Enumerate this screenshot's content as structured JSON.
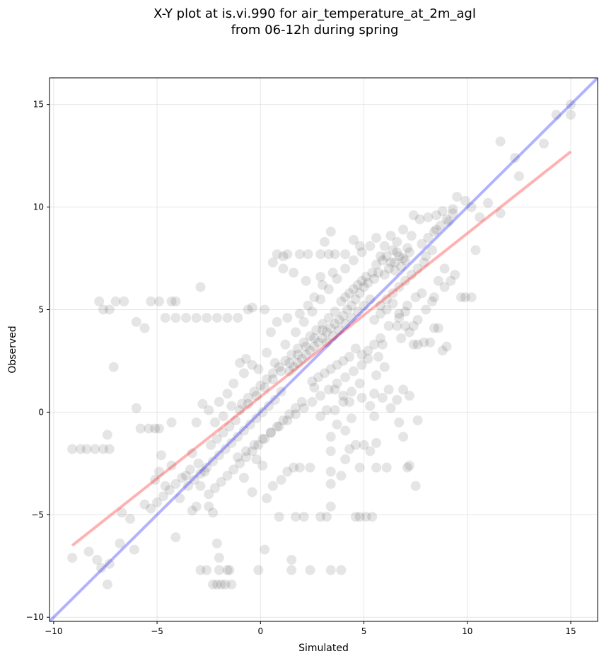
{
  "chart_data": {
    "type": "scatter",
    "title_line1": "X-Y plot at is.vi.990 for air_temperature_at_2m_agl",
    "title_line2": "from 06-12h during spring",
    "xlabel": "Simulated",
    "ylabel": "Observed",
    "xlim": [
      -10.2,
      16.3
    ],
    "ylim": [
      -10.2,
      16.3
    ],
    "xticks": [
      -10,
      -5,
      0,
      5,
      10,
      15
    ],
    "yticks": [
      -10,
      -5,
      0,
      5,
      10,
      15
    ],
    "xtick_labels": [
      "−10",
      "−5",
      "0",
      "5",
      "10",
      "15"
    ],
    "ytick_labels": [
      "−10",
      "−5",
      "0",
      "5",
      "10",
      "15"
    ],
    "grid": true,
    "point_color": "#000000",
    "point_alpha": 0.1,
    "lines": [
      {
        "role": "one-to-one",
        "color": "#0000ff",
        "alpha": 0.3,
        "x": [
          -10.2,
          16.3
        ],
        "y": [
          -10.2,
          16.3
        ]
      },
      {
        "role": "regression-fit",
        "color": "#ff0000",
        "alpha": 0.3,
        "x": [
          -9.1,
          15.0
        ],
        "y": [
          -6.5,
          12.7
        ]
      }
    ],
    "points": [
      [
        -9.1,
        -1.8
      ],
      [
        -8.7,
        -1.8
      ],
      [
        -8.4,
        -1.8
      ],
      [
        -8.0,
        -1.8
      ],
      [
        -7.6,
        -1.8
      ],
      [
        -7.3,
        -1.8
      ],
      [
        -7.4,
        -1.1
      ],
      [
        -9.1,
        -7.1
      ],
      [
        -8.3,
        -6.8
      ],
      [
        -7.9,
        -7.2
      ],
      [
        -7.7,
        -7.6
      ],
      [
        -7.4,
        -8.4
      ],
      [
        -7.3,
        -7.4
      ],
      [
        -6.8,
        -6.4
      ],
      [
        -6.1,
        -6.7
      ],
      [
        -7.8,
        5.4
      ],
      [
        -7.6,
        5.0
      ],
      [
        -7.3,
        5.0
      ],
      [
        -7.0,
        5.4
      ],
      [
        -6.6,
        5.4
      ],
      [
        -7.1,
        2.2
      ],
      [
        -6.0,
        4.4
      ],
      [
        -5.6,
        4.1
      ],
      [
        -5.3,
        5.4
      ],
      [
        -4.9,
        5.4
      ],
      [
        -4.6,
        4.6
      ],
      [
        -4.1,
        4.6
      ],
      [
        -3.6,
        4.6
      ],
      [
        -3.1,
        4.6
      ],
      [
        -2.6,
        4.6
      ],
      [
        -2.1,
        4.6
      ],
      [
        -4.3,
        5.4
      ],
      [
        -4.1,
        5.4
      ],
      [
        -2.9,
        6.1
      ],
      [
        -1.6,
        4.6
      ],
      [
        -1.1,
        4.6
      ],
      [
        -0.6,
        5.0
      ],
      [
        -0.4,
        5.1
      ],
      [
        0.2,
        5.0
      ],
      [
        -6.0,
        0.2
      ],
      [
        -5.8,
        -0.8
      ],
      [
        -5.4,
        -0.8
      ],
      [
        -5.1,
        -0.8
      ],
      [
        -4.9,
        -0.8
      ],
      [
        -4.3,
        -0.5
      ],
      [
        -3.1,
        -0.5
      ],
      [
        -2.8,
        0.4
      ],
      [
        -6.7,
        -4.9
      ],
      [
        -6.3,
        -5.2
      ],
      [
        -5.6,
        -4.5
      ],
      [
        -5.1,
        -3.3
      ],
      [
        -4.9,
        -2.9
      ],
      [
        -4.8,
        -2.1
      ],
      [
        -4.6,
        -3.6
      ],
      [
        -4.3,
        -2.6
      ],
      [
        -4.1,
        -6.1
      ],
      [
        -3.9,
        -4.2
      ],
      [
        -3.6,
        -3.1
      ],
      [
        -3.4,
        -2.8
      ],
      [
        -3.3,
        -4.8
      ],
      [
        -3.1,
        -4.6
      ],
      [
        -2.9,
        -3.6
      ],
      [
        -2.7,
        -2.9
      ],
      [
        -2.5,
        -4.6
      ],
      [
        -2.3,
        -4.9
      ],
      [
        -2.1,
        -6.4
      ],
      [
        -2.0,
        -7.1
      ],
      [
        -2.0,
        -7.7
      ],
      [
        -1.9,
        -8.4
      ],
      [
        -2.1,
        -8.4
      ],
      [
        -2.3,
        -8.4
      ],
      [
        -1.7,
        -8.4
      ],
      [
        -1.5,
        -7.7
      ],
      [
        -1.4,
        -8.4
      ],
      [
        -2.9,
        -7.7
      ],
      [
        -2.6,
        -7.7
      ],
      [
        -1.6,
        -7.7
      ],
      [
        -0.1,
        -7.7
      ],
      [
        0.2,
        -6.7
      ],
      [
        1.5,
        -7.2
      ],
      [
        1.5,
        -7.7
      ],
      [
        2.4,
        -7.7
      ],
      [
        3.4,
        -7.7
      ],
      [
        3.9,
        -7.7
      ],
      [
        0.9,
        -5.1
      ],
      [
        1.7,
        -5.1
      ],
      [
        2.1,
        -5.1
      ],
      [
        2.9,
        -5.1
      ],
      [
        3.2,
        -5.1
      ],
      [
        3.4,
        -4.6
      ],
      [
        4.6,
        -5.1
      ],
      [
        4.8,
        -5.1
      ],
      [
        5.1,
        -5.1
      ],
      [
        5.4,
        -5.1
      ],
      [
        3.4,
        -3.5
      ],
      [
        3.4,
        -2.9
      ],
      [
        3.9,
        -3.1
      ],
      [
        4.1,
        -2.3
      ],
      [
        4.3,
        -1.8
      ],
      [
        4.6,
        -1.6
      ],
      [
        5.0,
        -1.6
      ],
      [
        5.3,
        -1.9
      ],
      [
        5.6,
        -1.5
      ],
      [
        6.1,
        -2.7
      ],
      [
        5.6,
        -2.7
      ],
      [
        4.8,
        -2.7
      ],
      [
        3.4,
        -1.9
      ],
      [
        2.4,
        -2.7
      ],
      [
        1.6,
        -2.7
      ],
      [
        1.9,
        -2.7
      ],
      [
        7.1,
        -2.7
      ],
      [
        7.5,
        -3.6
      ],
      [
        7.2,
        -2.6
      ],
      [
        6.9,
        -1.2
      ],
      [
        6.6,
        0.6
      ],
      [
        6.2,
        1.1
      ],
      [
        6.9,
        1.1
      ],
      [
        7.2,
        0.8
      ],
      [
        7.6,
        -0.4
      ],
      [
        4.9,
        0.7
      ],
      [
        5.3,
        0.3
      ],
      [
        5.5,
        -0.2
      ],
      [
        4.3,
        0.5
      ],
      [
        4.0,
        0.5
      ],
      [
        3.6,
        0.1
      ],
      [
        3.2,
        0.1
      ],
      [
        2.9,
        -0.2
      ],
      [
        9.5,
        10.5
      ],
      [
        9.9,
        10.3
      ],
      [
        10.2,
        10.0
      ],
      [
        10.6,
        9.5
      ],
      [
        11.0,
        10.2
      ],
      [
        11.6,
        9.7
      ],
      [
        11.6,
        13.2
      ],
      [
        12.3,
        12.4
      ],
      [
        12.5,
        11.5
      ],
      [
        13.7,
        13.1
      ],
      [
        14.3,
        14.5
      ],
      [
        15.0,
        14.5
      ],
      [
        15.0,
        15.0
      ],
      [
        9.9,
        5.6
      ],
      [
        10.2,
        5.6
      ],
      [
        10.4,
        7.9
      ],
      [
        9.4,
        6.7
      ],
      [
        9.2,
        6.4
      ],
      [
        8.9,
        6.1
      ],
      [
        8.6,
        6.4
      ],
      [
        8.4,
        5.6
      ],
      [
        9.0,
        3.2
      ],
      [
        8.8,
        3.0
      ],
      [
        8.6,
        4.1
      ],
      [
        8.2,
        3.4
      ],
      [
        7.6,
        3.3
      ],
      [
        7.9,
        3.4
      ],
      [
        7.4,
        3.3
      ],
      [
        8.4,
        4.1
      ],
      [
        7.8,
        5.8
      ],
      [
        9.7,
        5.6
      ],
      [
        8.9,
        7.0
      ],
      [
        7.4,
        9.6
      ],
      [
        7.7,
        9.4
      ],
      [
        8.1,
        9.5
      ],
      [
        8.5,
        9.6
      ],
      [
        8.8,
        9.8
      ],
      [
        9.1,
        9.3
      ],
      [
        9.3,
        9.9
      ],
      [
        8.5,
        8.9
      ],
      [
        0.8,
        7.7
      ],
      [
        1.3,
        7.7
      ],
      [
        1.9,
        7.7
      ],
      [
        2.3,
        7.7
      ],
      [
        2.9,
        7.7
      ],
      [
        3.3,
        7.7
      ],
      [
        3.6,
        7.7
      ],
      [
        4.1,
        7.7
      ],
      [
        0.6,
        7.3
      ],
      [
        1.1,
        7.6
      ],
      [
        1.1,
        7.0
      ],
      [
        1.6,
        6.8
      ],
      [
        2.2,
        6.4
      ],
      [
        2.9,
        6.6
      ],
      [
        3.1,
        8.3
      ],
      [
        3.4,
        8.8
      ],
      [
        4.5,
        8.4
      ],
      [
        4.8,
        8.1
      ],
      [
        5.3,
        8.1
      ],
      [
        5.6,
        8.5
      ],
      [
        6.3,
        8.6
      ],
      [
        6.9,
        8.9
      ],
      [
        7.3,
        8.6
      ],
      [
        6.6,
        8.3
      ],
      [
        6.0,
        8.1
      ],
      [
        5.8,
        7.6
      ],
      [
        6.4,
        7.9
      ],
      [
        6.7,
        7.6
      ],
      [
        7.0,
        7.4
      ],
      [
        7.2,
        7.8
      ],
      [
        6.8,
        7.1
      ],
      [
        6.5,
        7.3
      ],
      [
        6.2,
        7.0
      ],
      [
        6.0,
        6.7
      ],
      [
        5.7,
        6.8
      ],
      [
        5.5,
        6.5
      ],
      [
        5.2,
        6.3
      ],
      [
        5.0,
        6.1
      ],
      [
        4.8,
        5.8
      ],
      [
        4.6,
        5.5
      ],
      [
        4.4,
        5.2
      ],
      [
        4.2,
        5.0
      ],
      [
        4.0,
        4.7
      ],
      [
        3.8,
        4.5
      ],
      [
        3.6,
        4.3
      ],
      [
        3.4,
        4.1
      ],
      [
        3.2,
        3.9
      ],
      [
        3.0,
        3.6
      ],
      [
        2.8,
        3.4
      ],
      [
        2.6,
        3.2
      ],
      [
        2.4,
        3.0
      ],
      [
        2.2,
        2.8
      ],
      [
        2.0,
        2.6
      ],
      [
        1.8,
        2.4
      ],
      [
        1.6,
        2.2
      ],
      [
        1.4,
        2.0
      ],
      [
        5.6,
        7.2
      ],
      [
        5.9,
        7.4
      ],
      [
        6.1,
        7.6
      ],
      [
        6.3,
        7.3
      ],
      [
        6.6,
        7.8
      ],
      [
        6.9,
        7.5
      ],
      [
        7.1,
        8.0
      ],
      [
        6.5,
        6.9
      ],
      [
        5.4,
        6.8
      ],
      [
        5.1,
        6.6
      ],
      [
        4.9,
        6.4
      ],
      [
        4.7,
        6.2
      ],
      [
        4.5,
        6.0
      ],
      [
        4.3,
        5.8
      ],
      [
        4.1,
        5.6
      ],
      [
        3.9,
        5.4
      ],
      [
        5.3,
        5.5
      ],
      [
        5.0,
        5.2
      ],
      [
        4.7,
        4.9
      ],
      [
        4.4,
        4.6
      ],
      [
        4.1,
        4.3
      ],
      [
        3.8,
        4.0
      ],
      [
        3.5,
        3.7
      ],
      [
        3.2,
        3.4
      ],
      [
        5.8,
        5.2
      ],
      [
        6.1,
        5.5
      ],
      [
        6.4,
        5.8
      ],
      [
        6.7,
        6.1
      ],
      [
        7.0,
        6.4
      ],
      [
        7.3,
        6.7
      ],
      [
        7.6,
        7.0
      ],
      [
        7.9,
        7.3
      ],
      [
        5.5,
        4.5
      ],
      [
        5.8,
        4.8
      ],
      [
        6.1,
        5.0
      ],
      [
        6.4,
        5.3
      ],
      [
        6.7,
        4.6
      ],
      [
        7.0,
        4.9
      ],
      [
        6.2,
        4.2
      ],
      [
        6.6,
        4.2
      ],
      [
        7.0,
        4.2
      ],
      [
        7.4,
        4.2
      ],
      [
        5.8,
        3.6
      ],
      [
        5.5,
        3.3
      ],
      [
        5.7,
        2.7
      ],
      [
        5.9,
        3.3
      ],
      [
        5.2,
        3.0
      ],
      [
        4.9,
        2.8
      ],
      [
        4.6,
        3.1
      ],
      [
        4.3,
        2.7
      ],
      [
        4.0,
        2.5
      ],
      [
        3.7,
        2.3
      ],
      [
        3.4,
        2.1
      ],
      [
        3.1,
        1.9
      ],
      [
        2.8,
        1.7
      ],
      [
        2.5,
        1.5
      ],
      [
        4.9,
        2.3
      ],
      [
        4.5,
        2.0
      ],
      [
        4.1,
        1.7
      ],
      [
        3.7,
        1.4
      ],
      [
        3.3,
        1.1
      ],
      [
        2.9,
        0.8
      ],
      [
        2.5,
        0.5
      ],
      [
        2.1,
        0.2
      ],
      [
        1.7,
        -0.1
      ],
      [
        1.3,
        -0.4
      ],
      [
        0.9,
        -0.7
      ],
      [
        0.5,
        -1.0
      ],
      [
        0.1,
        -1.3
      ],
      [
        -0.3,
        -1.6
      ],
      [
        -0.7,
        -1.9
      ],
      [
        -1.1,
        -2.2
      ],
      [
        3.6,
        4.9
      ],
      [
        3.3,
        4.6
      ],
      [
        3.0,
        4.3
      ],
      [
        2.7,
        4.0
      ],
      [
        2.4,
        3.7
      ],
      [
        2.1,
        3.4
      ],
      [
        1.8,
        3.1
      ],
      [
        1.5,
        2.8
      ],
      [
        1.2,
        2.5
      ],
      [
        0.9,
        2.2
      ],
      [
        0.6,
        1.9
      ],
      [
        0.3,
        1.6
      ],
      [
        0.0,
        1.3
      ],
      [
        -0.3,
        1.0
      ],
      [
        -0.6,
        0.7
      ],
      [
        -0.9,
        0.4
      ],
      [
        1.0,
        1.0
      ],
      [
        0.7,
        0.6
      ],
      [
        0.4,
        0.3
      ],
      [
        0.1,
        0.0
      ],
      [
        -0.2,
        -0.3
      ],
      [
        -0.5,
        -0.6
      ],
      [
        -0.8,
        -0.9
      ],
      [
        -1.1,
        -1.2
      ],
      [
        -1.4,
        -1.5
      ],
      [
        -1.7,
        -1.8
      ],
      [
        -2.0,
        -2.1
      ],
      [
        -2.3,
        -2.4
      ],
      [
        -2.6,
        -2.7
      ],
      [
        -2.9,
        -3.0
      ],
      [
        -3.2,
        -3.3
      ],
      [
        -3.5,
        -3.6
      ],
      [
        -1.2,
        -0.4
      ],
      [
        -1.5,
        -0.7
      ],
      [
        -1.8,
        -1.0
      ],
      [
        -2.1,
        -1.3
      ],
      [
        -2.4,
        -1.6
      ],
      [
        -1.0,
        0.1
      ],
      [
        -0.6,
        0.4
      ],
      [
        -0.2,
        0.8
      ],
      [
        0.2,
        1.2
      ],
      [
        0.6,
        1.6
      ],
      [
        1.0,
        2.0
      ],
      [
        1.4,
        2.4
      ],
      [
        1.8,
        2.8
      ],
      [
        2.2,
        3.2
      ],
      [
        2.6,
        3.6
      ],
      [
        3.0,
        4.0
      ],
      [
        -1.6,
        -3.1
      ],
      [
        -1.9,
        -3.4
      ],
      [
        -2.2,
        -3.7
      ],
      [
        -2.5,
        -4.0
      ],
      [
        -1.3,
        -2.8
      ],
      [
        -1.0,
        -2.5
      ],
      [
        -0.7,
        -2.2
      ],
      [
        -0.4,
        -1.9
      ],
      [
        -0.1,
        -1.6
      ],
      [
        0.2,
        -1.3
      ],
      [
        0.5,
        -1.0
      ],
      [
        0.8,
        -0.7
      ],
      [
        1.1,
        -0.4
      ],
      [
        1.4,
        -0.1
      ],
      [
        1.7,
        0.2
      ],
      [
        2.0,
        0.5
      ],
      [
        -3.8,
        -3.2
      ],
      [
        -4.1,
        -3.5
      ],
      [
        -4.4,
        -3.8
      ],
      [
        -4.7,
        -4.1
      ],
      [
        -5.0,
        -4.4
      ],
      [
        -5.3,
        -4.7
      ],
      [
        -3.0,
        -2.5
      ],
      [
        -3.3,
        -2.0
      ],
      [
        -0.4,
        -3.9
      ],
      [
        -0.8,
        -3.2
      ],
      [
        0.3,
        -4.2
      ],
      [
        0.6,
        -3.6
      ],
      [
        1.0,
        -3.3
      ],
      [
        1.3,
        -2.9
      ],
      [
        0.1,
        -2.6
      ],
      [
        -0.2,
        -2.3
      ],
      [
        -1.0,
        2.4
      ],
      [
        -0.7,
        2.6
      ],
      [
        -0.4,
        2.3
      ],
      [
        -0.1,
        2.1
      ],
      [
        0.3,
        2.9
      ],
      [
        0.7,
        2.4
      ],
      [
        1.2,
        3.3
      ],
      [
        1.7,
        3.9
      ],
      [
        2.1,
        4.4
      ],
      [
        2.5,
        4.9
      ],
      [
        2.9,
        5.5
      ],
      [
        3.3,
        6.0
      ],
      [
        3.7,
        6.5
      ],
      [
        4.1,
        7.0
      ],
      [
        4.5,
        7.4
      ],
      [
        4.9,
        7.8
      ],
      [
        0.5,
        3.9
      ],
      [
        0.8,
        4.4
      ],
      [
        1.3,
        4.6
      ],
      [
        1.9,
        4.8
      ],
      [
        2.3,
        5.2
      ],
      [
        2.6,
        5.6
      ],
      [
        3.0,
        6.2
      ],
      [
        3.5,
        6.8
      ],
      [
        -0.8,
        1.9
      ],
      [
        -1.3,
        1.4
      ],
      [
        -1.6,
        0.9
      ],
      [
        -2.0,
        0.5
      ],
      [
        -2.5,
        0.1
      ],
      [
        -2.2,
        -0.5
      ],
      [
        -1.8,
        -0.2
      ],
      [
        -1.4,
        0.3
      ],
      [
        5.9,
        0.7
      ],
      [
        5.5,
        0.9
      ],
      [
        6.3,
        0.2
      ],
      [
        6.7,
        -0.5
      ],
      [
        4.4,
        -0.3
      ],
      [
        4.1,
        -0.9
      ],
      [
        3.7,
        -0.6
      ],
      [
        3.4,
        -1.2
      ],
      [
        5.2,
        2.6
      ],
      [
        5.6,
        1.8
      ],
      [
        6.0,
        2.2
      ],
      [
        4.8,
        1.4
      ],
      [
        4.4,
        1.0
      ],
      [
        4.0,
        0.8
      ],
      [
        3.6,
        1.1
      ],
      [
        2.6,
        1.2
      ],
      [
        6.8,
        3.6
      ],
      [
        7.2,
        3.9
      ],
      [
        7.6,
        4.5
      ],
      [
        8.0,
        5.0
      ],
      [
        8.3,
        5.4
      ],
      [
        7.5,
        5.6
      ],
      [
        7.1,
        5.2
      ],
      [
        6.7,
        4.8
      ],
      [
        7.8,
        8.2
      ],
      [
        8.1,
        8.5
      ],
      [
        8.4,
        8.8
      ],
      [
        8.7,
        9.1
      ],
      [
        9.0,
        9.4
      ],
      [
        9.3,
        9.7
      ],
      [
        8.0,
        7.6
      ],
      [
        8.3,
        7.9
      ]
    ]
  }
}
